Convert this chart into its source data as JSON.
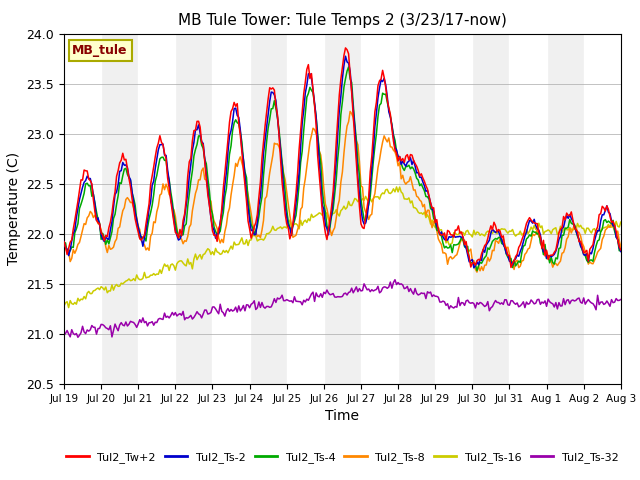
{
  "title": "MB Tule Tower: Tule Temps 2 (3/23/17-now)",
  "xlabel": "Time",
  "ylabel": "Temperature (C)",
  "ylim": [
    20.5,
    24.0
  ],
  "xlim": [
    0,
    360
  ],
  "series_colors": {
    "Tul2_Tw+2": "#ff0000",
    "Tul2_Ts-2": "#0000cc",
    "Tul2_Ts-4": "#00aa00",
    "Tul2_Ts-8": "#ff8800",
    "Tul2_Ts-16": "#cccc00",
    "Tul2_Ts-32": "#9900aa"
  },
  "xtick_labels": [
    "Jul 19",
    "Jul 20",
    "Jul 21",
    "Jul 22",
    "Jul 23",
    "Jul 24",
    "Jul 25",
    "Jul 26",
    "Jul 27",
    "Jul 28",
    "Jul 29",
    "Jul 30",
    "Jul 31",
    "Aug 1",
    "Aug 2",
    "Aug 3"
  ],
  "xtick_positions": [
    0,
    24,
    48,
    72,
    96,
    120,
    144,
    168,
    192,
    216,
    240,
    264,
    288,
    312,
    336,
    360
  ],
  "background_color": "#ffffff",
  "plot_bg_color": "#f0f0f0",
  "band_color": "#e0e0e0",
  "title_fontsize": 11,
  "annotation_text": "MB_tule",
  "annotation_bg": "#ffffcc",
  "annotation_border": "#aaaa00"
}
